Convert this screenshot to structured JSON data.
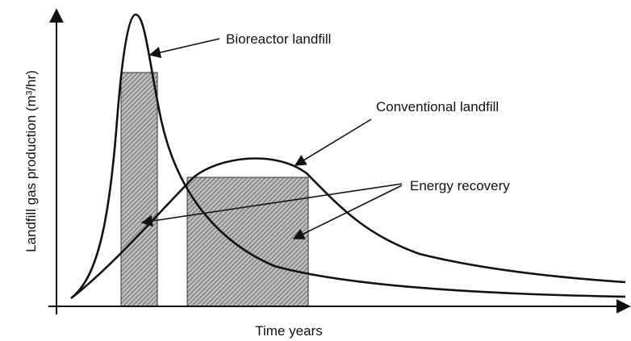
{
  "diagram": {
    "y_axis_label": "Landfill gas production (m³/hr)",
    "x_axis_label": "Time years",
    "annotations": [
      "Bioreactor landfill",
      "Conventional landfill",
      "Energy recovery"
    ]
  }
}
